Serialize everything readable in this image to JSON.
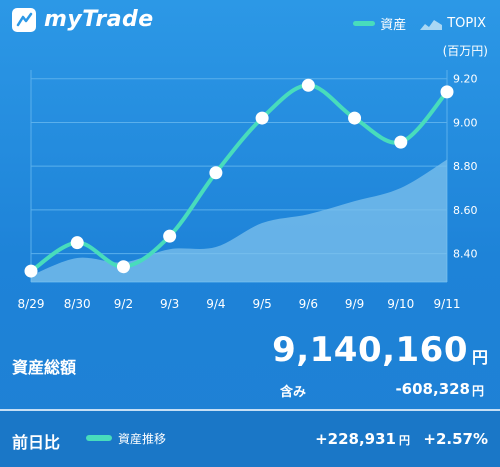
{
  "header": {
    "app_title": "myTrade",
    "legend_asset": "資産",
    "legend_topix": "TOPIX",
    "unit": "(百万円)"
  },
  "colors": {
    "asset_line": "#48dcbc",
    "topix_area": "#7fc2ec",
    "grid": "#5ab0ec"
  },
  "chart_data": {
    "type": "line",
    "categories": [
      "8/29",
      "8/30",
      "9/2",
      "9/3",
      "9/4",
      "9/5",
      "9/6",
      "9/9",
      "9/10",
      "9/11"
    ],
    "ylim": [
      8.27,
      9.24
    ],
    "yticks": [
      "9.20",
      "9.00",
      "8.80",
      "8.60",
      "8.40"
    ],
    "ytick_values": [
      9.2,
      9.0,
      8.8,
      8.6,
      8.4
    ],
    "grid": true,
    "legend": "top-right",
    "series": [
      {
        "name": "資産",
        "values": [
          8.32,
          8.45,
          8.34,
          8.48,
          8.77,
          9.02,
          9.17,
          9.02,
          8.91,
          9.14
        ]
      },
      {
        "name": "TOPIX",
        "values": [
          8.3,
          8.38,
          8.36,
          8.42,
          8.43,
          8.54,
          8.58,
          8.64,
          8.7,
          8.83
        ]
      }
    ]
  },
  "summary": {
    "total_label": "資産総額",
    "total_value": "9,140,160",
    "total_yen": "円",
    "unrealized_label": "含み",
    "unrealized_value": "-608,328",
    "unrealized_yen": "円"
  },
  "footer": {
    "label": "前日比",
    "legend": "資産推移",
    "diff": "+228,931",
    "diff_yen": "円",
    "pct": "+2.57%"
  }
}
